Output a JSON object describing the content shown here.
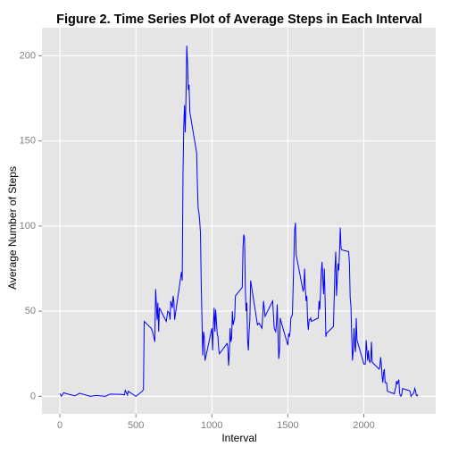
{
  "chart_data": {
    "type": "line",
    "title": "Figure 2. Time Series Plot of Average Steps in Each Interval",
    "x_label": "Interval",
    "y_label": "Average Number of Steps",
    "x": [
      0,
      10,
      25,
      45,
      100,
      130,
      200,
      240,
      300,
      330,
      400,
      425,
      430,
      445,
      450,
      500,
      530,
      545,
      550,
      555,
      600,
      610,
      625,
      630,
      640,
      645,
      650,
      655,
      700,
      710,
      720,
      725,
      730,
      740,
      745,
      750,
      755,
      800,
      805,
      810,
      815,
      820,
      825,
      830,
      835,
      840,
      845,
      850,
      855,
      900,
      905,
      910,
      915,
      920,
      925,
      930,
      935,
      940,
      945,
      950,
      955,
      1000,
      1005,
      1010,
      1015,
      1020,
      1025,
      1030,
      1035,
      1040,
      1045,
      1050,
      1100,
      1105,
      1110,
      1115,
      1120,
      1125,
      1130,
      1135,
      1140,
      1145,
      1150,
      1155,
      1200,
      1205,
      1210,
      1215,
      1220,
      1225,
      1230,
      1235,
      1240,
      1245,
      1250,
      1255,
      1300,
      1310,
      1330,
      1340,
      1350,
      1400,
      1410,
      1420,
      1425,
      1430,
      1440,
      1445,
      1450,
      1455,
      1500,
      1505,
      1510,
      1515,
      1520,
      1525,
      1530,
      1535,
      1540,
      1545,
      1550,
      1555,
      1600,
      1605,
      1610,
      1615,
      1620,
      1625,
      1630,
      1635,
      1640,
      1645,
      1650,
      1655,
      1700,
      1705,
      1710,
      1715,
      1720,
      1725,
      1730,
      1735,
      1740,
      1745,
      1750,
      1755,
      1800,
      1805,
      1810,
      1815,
      1820,
      1825,
      1830,
      1835,
      1840,
      1845,
      1850,
      1855,
      1900,
      1905,
      1910,
      1915,
      1920,
      1925,
      1930,
      1935,
      1940,
      1945,
      1950,
      1955,
      2000,
      2005,
      2010,
      2015,
      2020,
      2025,
      2030,
      2035,
      2040,
      2045,
      2050,
      2055,
      2100,
      2105,
      2110,
      2115,
      2120,
      2125,
      2130,
      2135,
      2140,
      2145,
      2150,
      2155,
      2200,
      2205,
      2210,
      2215,
      2220,
      2225,
      2230,
      2235,
      2240,
      2245,
      2250,
      2255,
      2300,
      2305,
      2310,
      2315,
      2320,
      2325,
      2330,
      2335,
      2340,
      2345,
      2350,
      2355
    ],
    "values": [
      1.7,
      0.1,
      2.1,
      1.5,
      0.3,
      1.8,
      0,
      0.5,
      0,
      1.3,
      1.2,
      0.9,
      3.5,
      0.8,
      3,
      0,
      2.1,
      3.3,
      4.2,
      44,
      40,
      38,
      32,
      63,
      45,
      55,
      38,
      52,
      44,
      50,
      49,
      45,
      56,
      52,
      59,
      56,
      45,
      73,
      68,
      129,
      158,
      171,
      155,
      177,
      206,
      196,
      180,
      183,
      167,
      143,
      124,
      110,
      108,
      103,
      96,
      66,
      45,
      24,
      38,
      35,
      21,
      40,
      27,
      42,
      52,
      38,
      51,
      44,
      37,
      35,
      28,
      25,
      31,
      29,
      18,
      25,
      40,
      32,
      34,
      50,
      42,
      44,
      46,
      59,
      64,
      88,
      95,
      93,
      64,
      50,
      55,
      33,
      27,
      38,
      45,
      68,
      42,
      43,
      40,
      56,
      47,
      56,
      40,
      38,
      43,
      54,
      22,
      27,
      46,
      44,
      30,
      37,
      35,
      38,
      46,
      47,
      48,
      65,
      83,
      98,
      102,
      83,
      62,
      63,
      75,
      63,
      56,
      59,
      44,
      39,
      45,
      45,
      46,
      44,
      46,
      56,
      51,
      61,
      73,
      79,
      69,
      60,
      75,
      57,
      35,
      37,
      41,
      58,
      75,
      85,
      59,
      68,
      78,
      74,
      85,
      99,
      87,
      86,
      85,
      78,
      58,
      53,
      36,
      21,
      27,
      40,
      30,
      26,
      46,
      33,
      19,
      19,
      19,
      33,
      27,
      21,
      27,
      21,
      20,
      21,
      32,
      20,
      16,
      17,
      23,
      19,
      12,
      8,
      14,
      16,
      8,
      8,
      8,
      3,
      1.5,
      4,
      5,
      9,
      7,
      8.7,
      9.8,
      2.2,
      0.3,
      0.1,
      1.6,
      4.6,
      3.3,
      2.8,
      0,
      0.8,
      1,
      1.6,
      2.6,
      4.7,
      3.3,
      0.6,
      0.2,
      1.1
    ],
    "color": "#0000ff",
    "xlim": [
      -117.75,
      2472.75
    ],
    "ylim": [
      -10.3,
      216.5
    ],
    "xticks": [
      0,
      500,
      1000,
      1500,
      2000
    ],
    "yticks": [
      0,
      50,
      100,
      150,
      200
    ],
    "grid": true
  }
}
